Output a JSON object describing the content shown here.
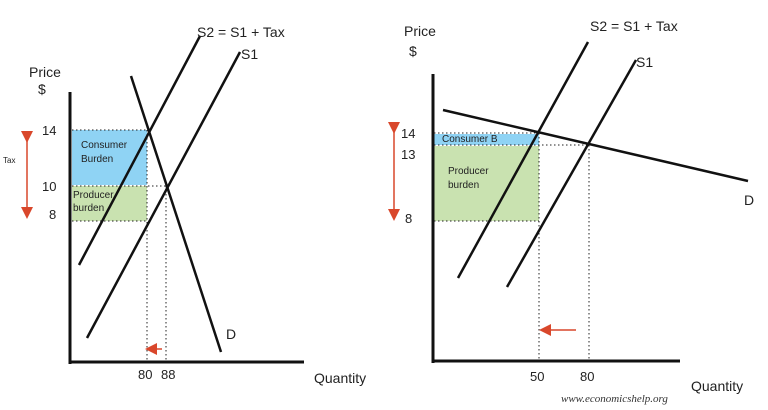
{
  "left": {
    "y_label_line1": "Price",
    "y_label_line2": "$",
    "x_label": "Quantity",
    "s2_label": "S2 = S1 + Tax",
    "s1_label": "S1",
    "d_label": "D",
    "tax_label": "Tax",
    "price_ticks": [
      "14",
      "10",
      "8"
    ],
    "qty_ticks": [
      "80",
      "88"
    ],
    "consumer_label_line1": "Consumer",
    "consumer_label_line2": "Burden",
    "producer_label_line1": "Producer",
    "producer_label_line2": "burden",
    "colors": {
      "consumer": "#8fd3f4",
      "producer": "#c9e2b0",
      "arrow": "#d9472b"
    }
  },
  "right": {
    "y_label_line1": "Price",
    "y_label_line2": "$",
    "x_label": "Quantity",
    "s2_label": "S2 = S1 + Tax",
    "s1_label": "S1",
    "d_label": "D",
    "price_ticks": [
      "14",
      "13",
      "8"
    ],
    "qty_ticks": [
      "50",
      "80"
    ],
    "consumer_label": "Consumer B",
    "producer_label_line1": "Producer",
    "producer_label_line2": "burden",
    "colors": {
      "consumer": "#8fd3f4",
      "producer": "#c9e2b0",
      "arrow": "#d9472b"
    }
  },
  "credit": "www.economicshelp.org"
}
